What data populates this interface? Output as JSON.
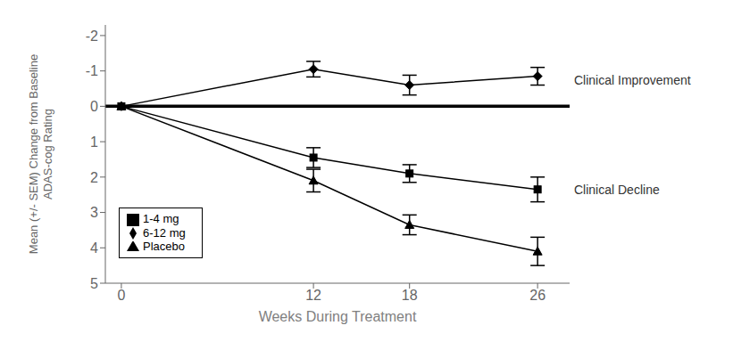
{
  "chart_data": {
    "type": "line",
    "x": [
      0,
      12,
      18,
      26
    ],
    "series": [
      {
        "name": "6-12 mg",
        "color": "#000000",
        "marker": "diamond",
        "values": [
          0,
          -1.05,
          -0.6,
          -0.85
        ],
        "sem": [
          0,
          0.22,
          0.28,
          0.25
        ]
      },
      {
        "name": "1-4 mg",
        "color": "#000000",
        "marker": "square",
        "values": [
          0,
          1.45,
          1.9,
          2.35
        ],
        "sem": [
          0,
          0.28,
          0.25,
          0.35
        ]
      },
      {
        "name": "Placebo",
        "color": "#000000",
        "marker": "triangle",
        "values": [
          0,
          2.1,
          3.35,
          4.1
        ],
        "sem": [
          0,
          0.32,
          0.28,
          0.4
        ]
      }
    ],
    "xlabel": "Weeks During Treatment",
    "ylabel": "Mean (+/- SEM) Change from Baseline\nADAS-cog Rating",
    "xlim": [
      -1,
      28
    ],
    "ylim": [
      5,
      -2.3
    ],
    "xticks": [
      0,
      12,
      18,
      26
    ],
    "yticks": [
      -2,
      -1,
      0,
      1,
      2,
      3,
      4,
      5
    ],
    "grid": false,
    "legend": "lower left",
    "reference_line": 0,
    "annotations": [
      {
        "text": "Clinical Improvement",
        "y": -0.75
      },
      {
        "text": "Clinical Decline",
        "y": 2.35
      }
    ]
  }
}
